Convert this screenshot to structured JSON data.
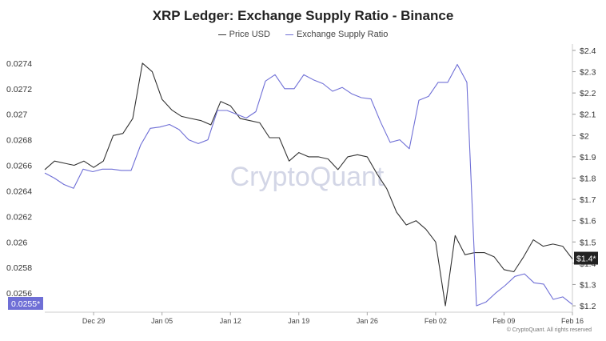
{
  "chart_data": {
    "type": "line",
    "title": "XRP Ledger: Exchange Supply Ratio - Binance",
    "x_ticks": [
      "Dec 29",
      "Jan 05",
      "Jan 12",
      "Jan 19",
      "Jan 26",
      "Feb 02",
      "Feb 09",
      "Feb 16"
    ],
    "ylim_left": [
      0.02545,
      0.02755
    ],
    "ylim_right": [
      1.17,
      2.43
    ],
    "y_ticks_left": [
      "0.0274",
      "0.0272",
      "0.027",
      "0.0268",
      "0.0266",
      "0.0264",
      "0.0262",
      "0.026",
      "0.0258",
      "0.0256"
    ],
    "y_ticks_right": [
      "$2.4",
      "$2.3",
      "$2.2",
      "$2.1",
      "$2",
      "$1.9",
      "$1.8",
      "$1.7",
      "$1.6",
      "$1.5",
      "$1.4",
      "$1.3",
      "$1.2"
    ],
    "current_left_label": "0.0255*",
    "current_right_label": "$1.4*",
    "series": [
      {
        "name": "Price USD",
        "axis": "right",
        "color": "#333333",
        "values": [
          1.84,
          1.88,
          1.87,
          1.86,
          1.88,
          1.85,
          1.88,
          2.0,
          2.01,
          2.08,
          2.34,
          2.3,
          2.17,
          2.12,
          2.09,
          2.08,
          2.07,
          2.05,
          2.16,
          2.14,
          2.08,
          2.07,
          2.06,
          1.99,
          1.99,
          1.88,
          1.92,
          1.9,
          1.9,
          1.89,
          1.84,
          1.9,
          1.91,
          1.9,
          1.82,
          1.75,
          1.64,
          1.58,
          1.6,
          1.56,
          1.5,
          1.2,
          1.53,
          1.44,
          1.45,
          1.45,
          1.43,
          1.37,
          1.36,
          1.43,
          1.51,
          1.48,
          1.49,
          1.48,
          1.42
        ]
      },
      {
        "name": "Exchange Supply Ratio",
        "axis": "left",
        "color": "#6f6fd6",
        "values": [
          0.02654,
          0.0265,
          0.02645,
          0.02642,
          0.02657,
          0.02655,
          0.02657,
          0.02657,
          0.02656,
          0.02656,
          0.02676,
          0.02689,
          0.0269,
          0.02692,
          0.02688,
          0.0268,
          0.02677,
          0.0268,
          0.02703,
          0.02703,
          0.027,
          0.02697,
          0.02702,
          0.02726,
          0.02731,
          0.0272,
          0.0272,
          0.02731,
          0.02727,
          0.02724,
          0.02718,
          0.02721,
          0.02716,
          0.02713,
          0.02712,
          0.02694,
          0.02678,
          0.0268,
          0.02673,
          0.02711,
          0.02714,
          0.02725,
          0.02725,
          0.02739,
          0.02725,
          0.0255,
          0.02553,
          0.0256,
          0.02566,
          0.02573,
          0.02575,
          0.02568,
          0.02567,
          0.02555,
          0.02557,
          0.02551
        ]
      }
    ]
  },
  "legend": {
    "price_label": "Price USD",
    "ratio_label": "Exchange Supply Ratio"
  },
  "watermark": "CryptoQuant",
  "copyright": "© CryptoQuant. All rights reserved"
}
